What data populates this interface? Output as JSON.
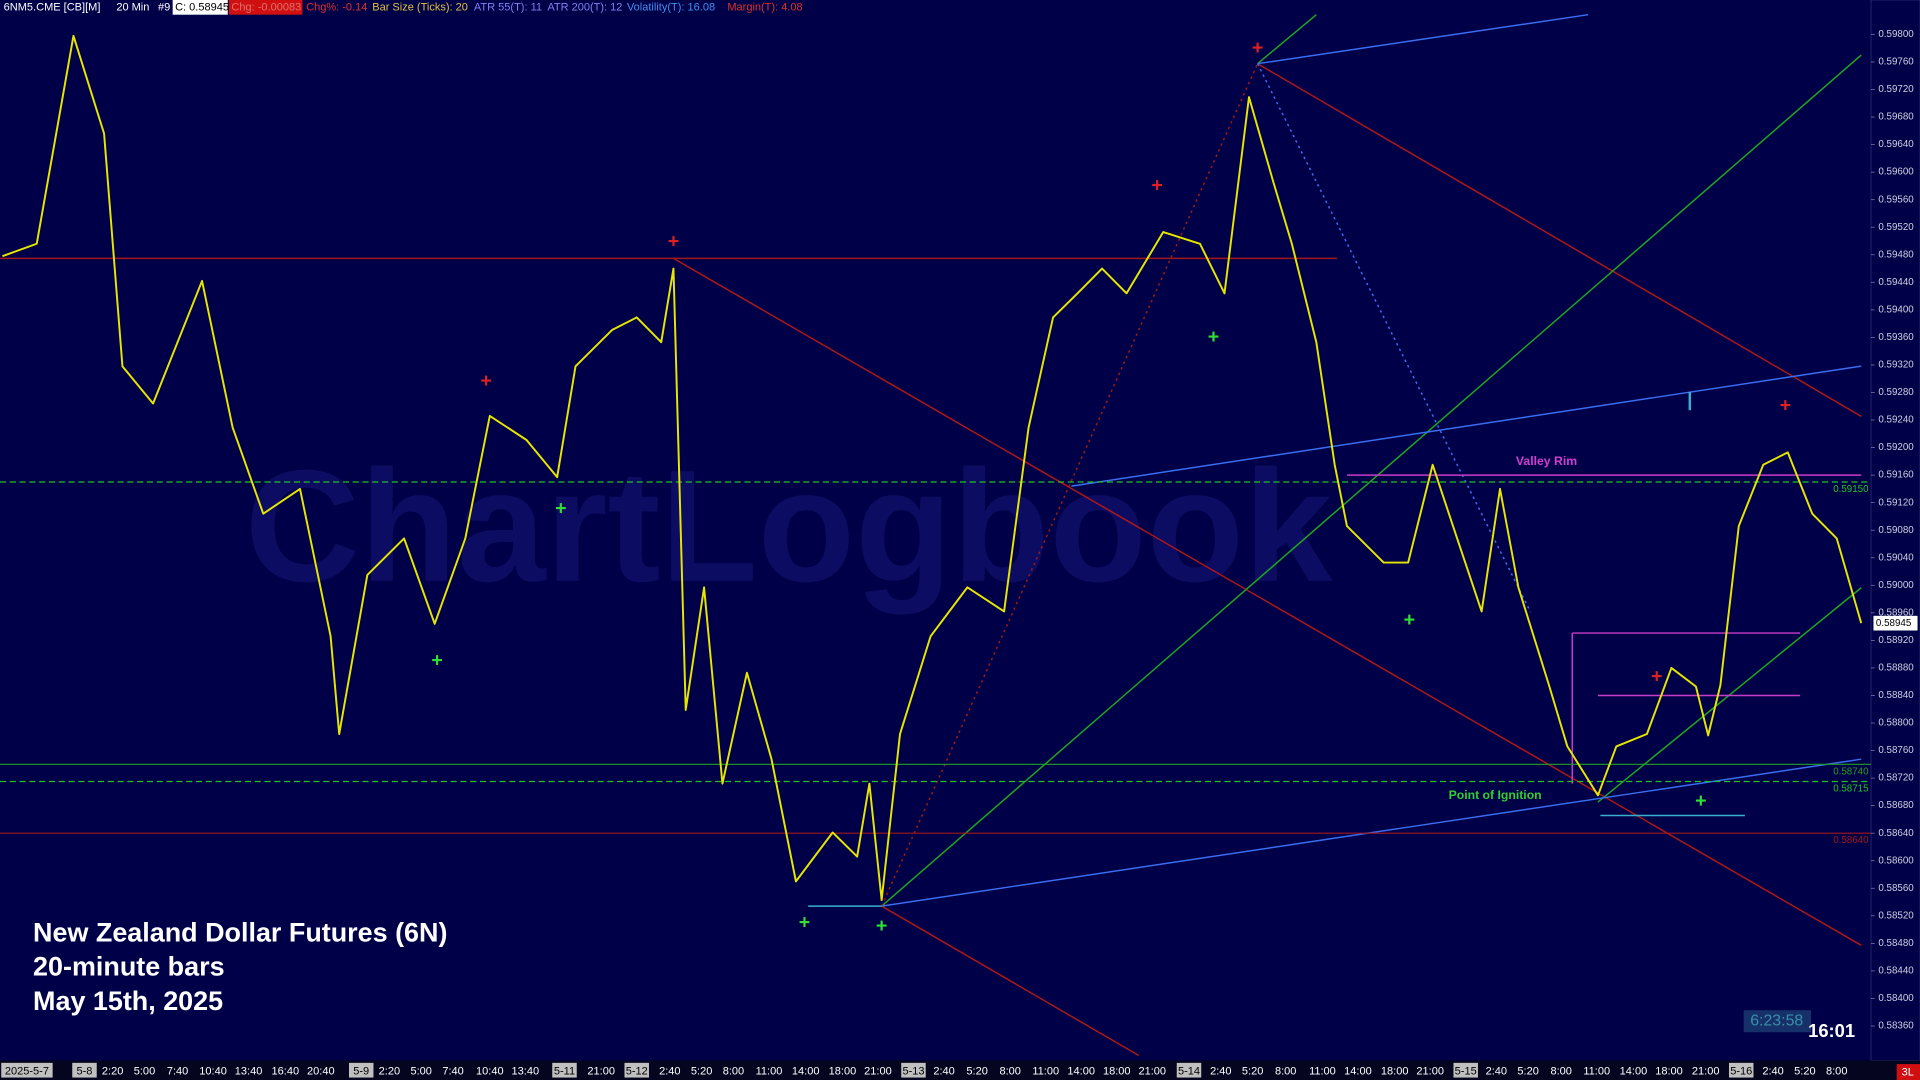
{
  "header": {
    "symbol": "6NM5.CME [CB][M]",
    "interval": "20 Min",
    "bar_no": "#9",
    "close": "C: 0.58945",
    "change": "Chg: -0.00083",
    "change_pct": "Chg%: -0.14",
    "bar_size": "Bar Size (Ticks): 20",
    "atr55": "ATR 55(T): 11",
    "atr200": "ATR 200(T): 12",
    "volatility": "Volatility(T): 16.08",
    "margin": "Margin(T): 4.08"
  },
  "chart_data": {
    "type": "line",
    "title": "New Zealand Dollar Futures (6N)",
    "subtitle": "20-minute bars",
    "date_note": "May 15th, 2025",
    "watermark": "ChartLogbook",
    "annotations": [
      "Valley Rim",
      "Point of Ignition"
    ],
    "countdown": "6:23:58",
    "clock": "16:01",
    "badge": "3L",
    "color": "#e6e600",
    "time_labels": [
      "2025-5-7",
      "5-8",
      "2:20",
      "5:00",
      "7:40",
      "10:40",
      "13:40",
      "16:40",
      "20:40",
      "5-9",
      "2:20",
      "5:00",
      "7:40",
      "10:40",
      "13:40",
      "5-11",
      "21:00",
      "5-12",
      "2:40",
      "5:20",
      "8:00",
      "11:00",
      "14:00",
      "18:00",
      "21:00",
      "5-13",
      "2:40",
      "5:20",
      "8:00",
      "11:00",
      "14:00",
      "18:00",
      "21:00",
      "5-14",
      "2:40",
      "5:20",
      "8:00",
      "11:00",
      "14:00",
      "18:00",
      "21:00",
      "5-15",
      "2:40",
      "5:20",
      "8:00",
      "11:00",
      "14:00",
      "18:00",
      "21:00",
      "5-16",
      "2:40",
      "5:20",
      "8:00"
    ],
    "values": [
      0.59478,
      0.59496,
      0.59798,
      0.59656,
      0.59318,
      0.59264,
      0.59442,
      0.59229,
      0.59104,
      0.5914,
      0.58926,
      0.58784,
      0.59015,
      0.59068,
      0.58944,
      0.59068,
      0.59246,
      0.59211,
      0.59157,
      0.59318,
      0.59371,
      0.59389,
      0.59353,
      0.5946,
      0.58819,
      0.58997,
      0.58712,
      0.58873,
      0.58748,
      0.5857,
      0.58641,
      0.58606,
      0.58712,
      0.58543,
      0.58784,
      0.58926,
      0.58997,
      0.58962,
      0.59229,
      0.59389,
      0.59424,
      0.5946,
      0.59424,
      0.59513,
      0.59496,
      0.59424,
      0.59709,
      0.59585,
      0.59496,
      0.59353,
      0.59175,
      0.59086,
      0.59033,
      0.59033,
      0.59175,
      0.59068,
      0.58962,
      0.5914,
      0.58997,
      0.58855,
      0.58766,
      0.58695,
      0.58766,
      0.58784,
      0.5888,
      0.58853,
      0.58782,
      0.58855,
      0.59086,
      0.59175,
      0.59193,
      0.59104,
      0.59068,
      0.58945
    ],
    "ylim": [
      0.5831,
      0.5985
    ],
    "yticks": [
      {
        "value": 0.598,
        "label": "0.59800"
      },
      {
        "value": 0.5976,
        "label": "0.59760"
      },
      {
        "value": 0.5972,
        "label": "0.59720"
      },
      {
        "value": 0.5968,
        "label": "0.59680"
      },
      {
        "value": 0.5964,
        "label": "0.59640"
      },
      {
        "value": 0.596,
        "label": "0.59600"
      },
      {
        "value": 0.5956,
        "label": "0.59560"
      },
      {
        "value": 0.5952,
        "label": "0.59520"
      },
      {
        "value": 0.5948,
        "label": "0.59480"
      },
      {
        "value": 0.5944,
        "label": "0.59440"
      },
      {
        "value": 0.594,
        "label": "0.59400"
      },
      {
        "value": 0.5936,
        "label": "0.59360"
      },
      {
        "value": 0.5932,
        "label": "0.59320"
      },
      {
        "value": 0.5928,
        "label": "0.59280"
      },
      {
        "value": 0.5924,
        "label": "0.59240"
      },
      {
        "value": 0.592,
        "label": "0.59200"
      },
      {
        "value": 0.5916,
        "label": "0.59160"
      },
      {
        "value": 0.5912,
        "label": "0.59120"
      },
      {
        "value": 0.5908,
        "label": "0.59080"
      },
      {
        "value": 0.5904,
        "label": "0.59040"
      },
      {
        "value": 0.59,
        "label": "0.59000"
      },
      {
        "value": 0.5896,
        "label": "0.58960"
      },
      {
        "value": 0.5892,
        "label": "0.58920"
      },
      {
        "value": 0.5888,
        "label": "0.58880"
      },
      {
        "value": 0.5884,
        "label": "0.58840"
      },
      {
        "value": 0.588,
        "label": "0.58800"
      },
      {
        "value": 0.5876,
        "label": "0.58760"
      },
      {
        "value": 0.5872,
        "label": "0.58720"
      },
      {
        "value": 0.5868,
        "label": "0.58680"
      },
      {
        "value": 0.5864,
        "label": "0.58640"
      },
      {
        "value": 0.586,
        "label": "0.58600"
      },
      {
        "value": 0.5856,
        "label": "0.58560"
      },
      {
        "value": 0.5852,
        "label": "0.58520"
      },
      {
        "value": 0.5848,
        "label": "0.58480"
      },
      {
        "value": 0.5844,
        "label": "0.58440"
      },
      {
        "value": 0.584,
        "label": "0.58400"
      },
      {
        "value": 0.5836,
        "label": "0.58360"
      }
    ],
    "levels": [
      {
        "value": 0.5915,
        "label": "0.59150",
        "color": "#22c322",
        "dash": true
      },
      {
        "value": 0.5874,
        "label": "0.58740",
        "color": "#22a022",
        "dash": false
      },
      {
        "value": 0.58715,
        "label": "0.58715",
        "color": "#22c322",
        "dash": true
      },
      {
        "value": 0.5864,
        "label": "0.58640",
        "color": "#a01818",
        "dash": false
      }
    ],
    "last": {
      "value": 0.58945,
      "label": "0.58945"
    }
  }
}
